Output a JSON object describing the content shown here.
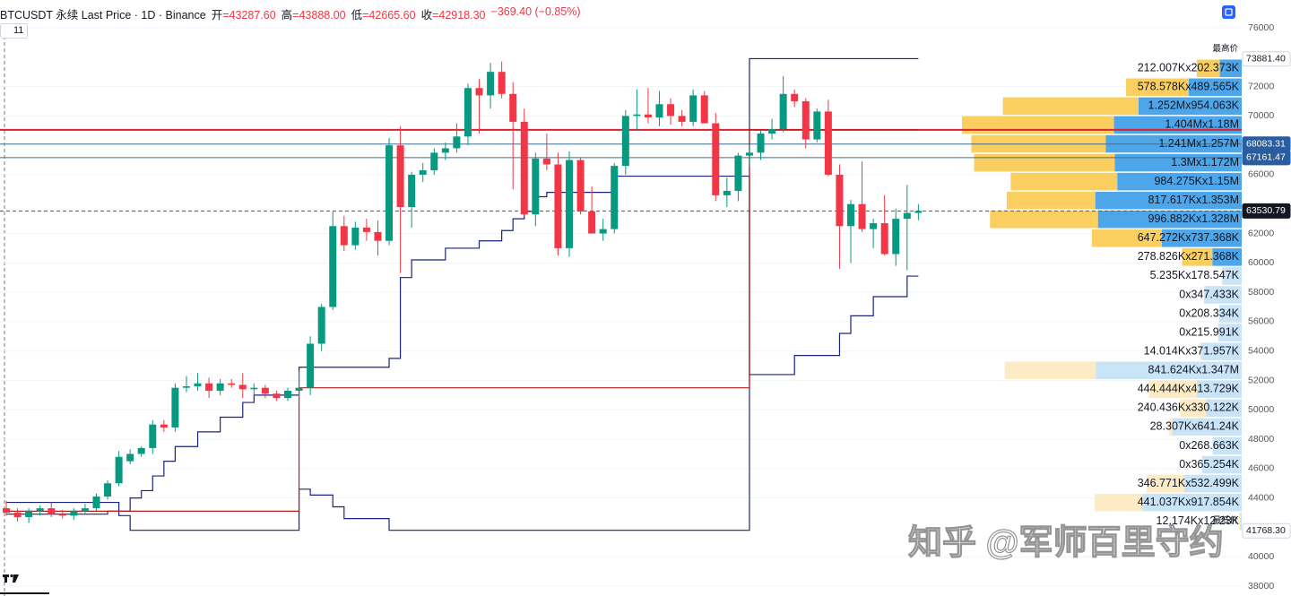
{
  "chart_data": {
    "type": "candlestick",
    "title": "BTCUSDT 永续 Last Price · 1D · Binance",
    "ohlc_items": [
      {
        "label": "开",
        "value": "=43287.60"
      },
      {
        "label": "高",
        "value": "=43888.00"
      },
      {
        "label": "低",
        "value": "=42665.60"
      },
      {
        "label": "收",
        "value": "=42918.30"
      }
    ],
    "change": "−369.40 (−0.85%)",
    "badge": "11",
    "watermark": "知乎 @军师百里守约",
    "ylim": [
      37330,
      77890
    ],
    "yticks": [
      76000,
      72000,
      70000,
      66000,
      62000,
      60000,
      58000,
      56000,
      54000,
      52000,
      50000,
      48000,
      46000,
      44000,
      40000,
      38000
    ],
    "grid": true,
    "up_color": "#089981",
    "down_color": "#f23645",
    "candles": {
      "open": [
        43300,
        43000,
        42700,
        43100,
        43300,
        42900,
        42800,
        43100,
        43300,
        44100,
        45000,
        46500,
        47000,
        47400,
        49000,
        48800,
        51500,
        51600,
        51800,
        51300,
        51800,
        51700,
        51400,
        51500,
        51100,
        50800,
        51300,
        51500,
        54500,
        57000,
        62500,
        61200,
        62400,
        62100,
        61500,
        68000,
        63800,
        66000,
        66300,
        67500,
        67800,
        68600,
        71900,
        71400,
        73000,
        71500,
        69600,
        63300,
        67100,
        66700,
        61000,
        67000,
        63500,
        62000,
        62300,
        66600,
        70000,
        70100,
        69900,
        70800,
        70000,
        69600,
        71400,
        69500,
        64600,
        64900,
        67300,
        67500,
        68800,
        69100,
        71500,
        71000,
        68400,
        70300,
        66000,
        62500,
        64000,
        62300,
        62700,
        60600,
        63000,
        63400
      ],
      "high": [
        43800,
        43300,
        43300,
        43500,
        43700,
        43200,
        43300,
        43600,
        44300,
        45200,
        47200,
        47300,
        47500,
        49300,
        49300,
        51800,
        52300,
        52500,
        52200,
        52100,
        52100,
        52500,
        51800,
        51700,
        51300,
        51500,
        52600,
        55000,
        57200,
        63500,
        63200,
        62800,
        63000,
        62900,
        68500,
        69300,
        66200,
        66800,
        67800,
        68200,
        69500,
        72200,
        72500,
        73600,
        73700,
        72300,
        70500,
        67500,
        68800,
        67500,
        67600,
        67200,
        65200,
        63000,
        66800,
        70400,
        71800,
        71900,
        71700,
        71200,
        70400,
        71800,
        71700,
        70200,
        65800,
        67500,
        68000,
        69000,
        69800,
        72700,
        71800,
        71200,
        70500,
        71100,
        66700,
        64300,
        66900,
        63000,
        64600,
        63700,
        65300,
        64000
      ],
      "low": [
        42800,
        42400,
        42300,
        42800,
        42700,
        42600,
        42500,
        42900,
        43100,
        43900,
        44800,
        46300,
        46800,
        47000,
        48500,
        48500,
        51200,
        51300,
        50800,
        51000,
        51500,
        50800,
        51000,
        50800,
        50600,
        50600,
        50800,
        51000,
        54000,
        56800,
        60800,
        60900,
        61500,
        60500,
        61200,
        59300,
        62400,
        65500,
        66000,
        67000,
        67500,
        68000,
        68800,
        70500,
        71200,
        65000,
        63200,
        62500,
        66300,
        60500,
        60400,
        63300,
        62000,
        61500,
        62000,
        66000,
        69000,
        69500,
        69300,
        69400,
        69300,
        69300,
        69500,
        64200,
        63800,
        64200,
        66600,
        67000,
        68400,
        68900,
        70600,
        67800,
        68200,
        65900,
        59600,
        60000,
        62100,
        61000,
        60500,
        59800,
        59500,
        62900
      ],
      "close": [
        43000,
        42700,
        43100,
        43300,
        42900,
        42800,
        43100,
        43300,
        44100,
        45000,
        46800,
        47000,
        47400,
        49000,
        48800,
        51500,
        51600,
        51800,
        51300,
        51800,
        51700,
        51400,
        51500,
        51100,
        50800,
        51300,
        51500,
        54500,
        57000,
        62500,
        61200,
        62400,
        62100,
        61500,
        68000,
        63800,
        66000,
        66300,
        67500,
        67800,
        68600,
        71900,
        71400,
        73000,
        71500,
        69600,
        63300,
        67100,
        66700,
        61000,
        67000,
        63500,
        62000,
        62300,
        66600,
        70000,
        70100,
        69900,
        70800,
        70000,
        69600,
        71400,
        69500,
        64600,
        64900,
        67300,
        67500,
        68800,
        69100,
        71500,
        71000,
        68400,
        70300,
        66000,
        62500,
        64000,
        62300,
        62700,
        60600,
        63000,
        63400,
        63530
      ]
    },
    "step_lines": [
      {
        "color": "#1a237e",
        "x": [
          0,
          10,
          11,
          26,
          27,
          29,
          30,
          34,
          66
        ],
        "values": [
          43700,
          42800,
          41800,
          44600,
          44200,
          43400,
          42600,
          41800,
          73900
        ]
      },
      {
        "color": "#1a237e",
        "x": [
          0,
          9,
          11,
          12,
          13,
          14,
          15,
          17,
          19,
          21,
          22,
          26,
          34,
          35,
          36,
          39,
          42,
          44,
          45,
          46,
          47,
          48,
          54,
          66,
          70,
          74,
          75,
          77,
          80
        ],
        "values": [
          42900,
          43100,
          44000,
          44500,
          45500,
          46500,
          47500,
          48500,
          49500,
          50500,
          51000,
          52900,
          53500,
          59000,
          60200,
          61000,
          61500,
          62200,
          63000,
          63500,
          64500,
          64800,
          65900,
          52400,
          53700,
          55200,
          56400,
          57700,
          59100
        ]
      },
      {
        "color": "#b71c1c",
        "x": [
          0,
          26,
          66
        ],
        "values": [
          43100,
          51500,
          69050
        ]
      }
    ],
    "hlines": [
      {
        "value": 69050,
        "color": "#d9232e",
        "width": 2
      }
    ],
    "price_labels": [
      {
        "value": 73881.4,
        "label": "73881.40",
        "style": "high",
        "note": "最高价",
        "line": "none"
      },
      {
        "value": 68083.31,
        "label": "68083.31",
        "style": "blue",
        "line": "solid",
        "line_color": "#3b6e8f"
      },
      {
        "value": 67161.47,
        "label": "67161.47",
        "style": "blue",
        "line": "solid",
        "line_color": "#3b6e8f"
      },
      {
        "value": 63530.79,
        "label": "63530.79",
        "style": "last",
        "line": "dashed",
        "line_color": "#555555"
      },
      {
        "value": 41768.3,
        "label": "41768.30",
        "style": "low",
        "note": "最低价",
        "line": "none"
      }
    ],
    "profile": {
      "buy_color": "#fbcf5f",
      "sell_color": "#4ea6ea",
      "buy_pale": "#fcebc4",
      "sell_pale": "#c9e3f7",
      "value_area_rows": 11,
      "rows": [
        {
          "label": "212.007Kx202.373K",
          "buy": 212.007,
          "sell": 202.373
        },
        {
          "label": "578.578Kx489.565K",
          "buy": 578.578,
          "sell": 489.565
        },
        {
          "label": "1.252Mx954.063K",
          "buy": 1252,
          "sell": 954.063
        },
        {
          "label": "1.404Mx1.18M",
          "buy": 1404,
          "sell": 1180
        },
        {
          "label": "1.241Mx1.257M",
          "buy": 1241,
          "sell": 1257
        },
        {
          "label": "1.3Mx1.172M",
          "buy": 1300,
          "sell": 1172
        },
        {
          "label": "984.275Kx1.15M",
          "buy": 984.275,
          "sell": 1150
        },
        {
          "label": "817.617Kx1.353M",
          "buy": 817.617,
          "sell": 1353
        },
        {
          "label": "996.882Kx1.328M",
          "buy": 996.882,
          "sell": 1328
        },
        {
          "label": "647.272Kx737.368K",
          "buy": 647.272,
          "sell": 737.368
        },
        {
          "label": "278.826Kx271.368K",
          "buy": 278.826,
          "sell": 271.368
        },
        {
          "label": "5.235Kx178.547K",
          "buy": 5.235,
          "sell": 178.547
        },
        {
          "label": "0x347.433K",
          "buy": 0,
          "sell": 347.433
        },
        {
          "label": "0x208.334K",
          "buy": 0,
          "sell": 208.334
        },
        {
          "label": "0x215.991K",
          "buy": 0,
          "sell": 215.991
        },
        {
          "label": "14.014Kx371.957K",
          "buy": 14.014,
          "sell": 371.957
        },
        {
          "label": "841.624Kx1.347M",
          "buy": 841.624,
          "sell": 1347
        },
        {
          "label": "444.444Kx413.729K",
          "buy": 444.444,
          "sell": 413.729
        },
        {
          "label": "240.436Kx330.122K",
          "buy": 240.436,
          "sell": 330.122
        },
        {
          "label": "28.307Kx641.24K",
          "buy": 28.307,
          "sell": 641.24
        },
        {
          "label": "0x268.663K",
          "buy": 0,
          "sell": 268.663
        },
        {
          "label": "0x365.254K",
          "buy": 0,
          "sell": 365.254
        },
        {
          "label": "346.771Kx532.499K",
          "buy": 346.771,
          "sell": 532.499
        },
        {
          "label": "441.037Kx917.854K",
          "buy": 441.037,
          "sell": 917.854
        },
        {
          "label": "12.174Kx12.23K",
          "buy": 12.174,
          "sell": 12.23
        }
      ]
    }
  }
}
